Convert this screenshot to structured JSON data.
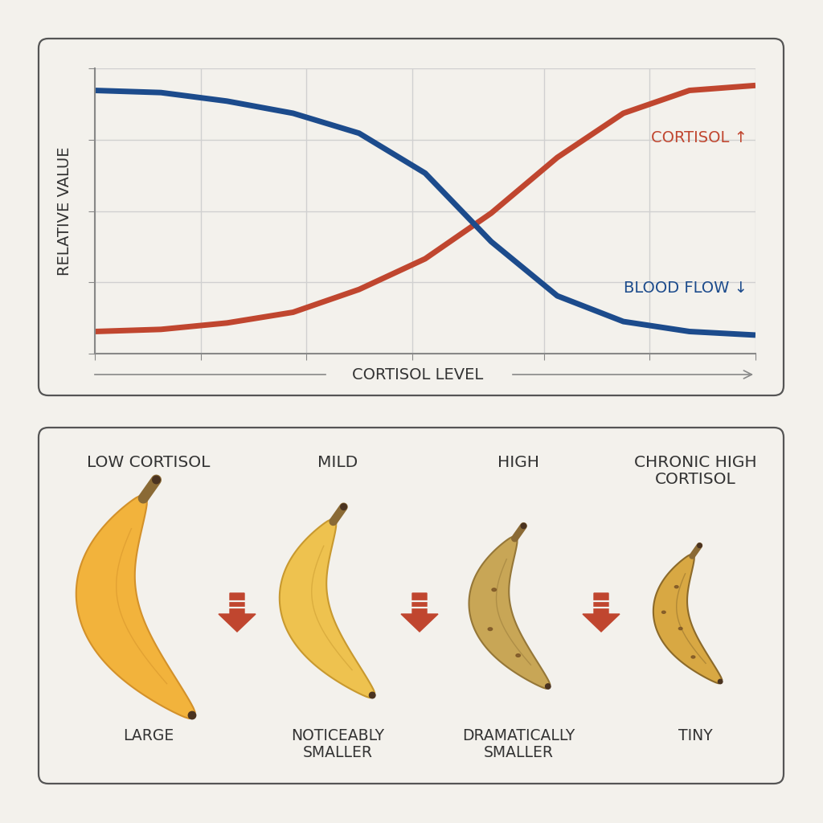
{
  "chart_data": {
    "type": "line",
    "x_label": "CORTISOL LEVEL",
    "y_label": "RELATIVE VALUE",
    "x": [
      0,
      1,
      2,
      3,
      4,
      5,
      6,
      7,
      8,
      9,
      10
    ],
    "xlim": [
      0,
      10
    ],
    "xticks": [
      0,
      1.6,
      3.2,
      4.8,
      6.8,
      8.4,
      10
    ],
    "ylim": [
      0,
      4
    ],
    "yticks": [
      0,
      1,
      2,
      3,
      4
    ],
    "grid": true,
    "tick_labels": false,
    "series": [
      {
        "name": "CORTISOL ↑",
        "color": "#c0462f",
        "values": [
          0.31,
          0.34,
          0.43,
          0.58,
          0.9,
          1.33,
          1.97,
          2.75,
          3.37,
          3.69,
          3.76
        ]
      },
      {
        "name": "BLOOD FLOW ↓",
        "color": "#1c4b8c",
        "values": [
          3.69,
          3.66,
          3.54,
          3.37,
          3.09,
          2.53,
          1.57,
          0.81,
          0.45,
          0.31,
          0.26
        ]
      }
    ]
  },
  "stages": [
    {
      "label": "LOW CORTISOL",
      "size": "LARGE"
    },
    {
      "label": "MILD",
      "size": "NOTICEABLY SMALLER"
    },
    {
      "label": "HIGH",
      "size": "DRAMATICALLY SMALLER"
    },
    {
      "label": "CHRONIC HIGH CORTISOL",
      "size": "TINY"
    }
  ]
}
